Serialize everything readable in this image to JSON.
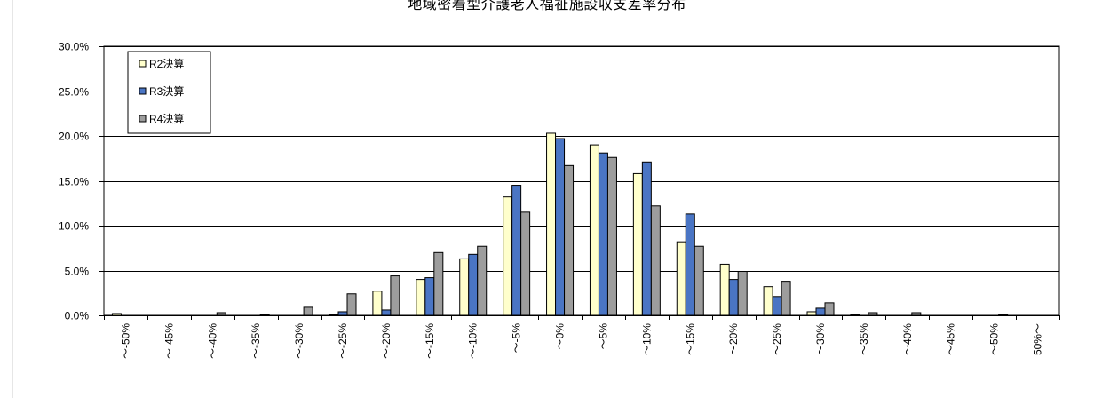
{
  "chart_data": {
    "type": "bar",
    "title": "地域密着型介護老人福祉施設収支差率分布",
    "categories": [
      "～-50%",
      "～-45%",
      "～-40%",
      "～-35%",
      "～-30%",
      "～-25%",
      "～-20%",
      "～-15%",
      "～-10%",
      "～-5%",
      "～0%",
      "～5%",
      "～10%",
      "～15%",
      "～20%",
      "～25%",
      "～30%",
      "～35%",
      "～40%",
      "～45%",
      "～50%",
      "50%～"
    ],
    "series": [
      {
        "name": "R2決算",
        "color": "#ffffcc",
        "values": [
          0.2,
          0.0,
          0.0,
          0.0,
          0.0,
          0.1,
          2.7,
          4.0,
          6.3,
          13.2,
          20.3,
          19.0,
          15.8,
          8.2,
          5.7,
          3.2,
          0.4,
          0.1,
          0.0,
          0.0,
          0.0,
          0.0
        ]
      },
      {
        "name": "R3決算",
        "color": "#4a75c4",
        "values": [
          0.0,
          0.0,
          0.0,
          0.0,
          0.0,
          0.4,
          0.6,
          4.2,
          6.8,
          14.5,
          19.7,
          18.1,
          17.1,
          11.3,
          4.0,
          2.1,
          0.8,
          0.0,
          0.0,
          0.0,
          0.0,
          0.0
        ]
      },
      {
        "name": "R4決算",
        "color": "#9d9d9d",
        "values": [
          0.0,
          0.0,
          0.3,
          0.1,
          0.9,
          2.4,
          4.4,
          7.0,
          7.7,
          11.5,
          16.7,
          17.6,
          12.2,
          7.7,
          4.9,
          3.8,
          1.4,
          0.3,
          0.3,
          0.0,
          0.1,
          0.0
        ]
      }
    ],
    "yticks": [
      "0.0%",
      "5.0%",
      "10.0%",
      "15.0%",
      "20.0%",
      "25.0%",
      "30.0%"
    ],
    "ylim": [
      0,
      30
    ],
    "grid": true,
    "legend": "top-left"
  }
}
